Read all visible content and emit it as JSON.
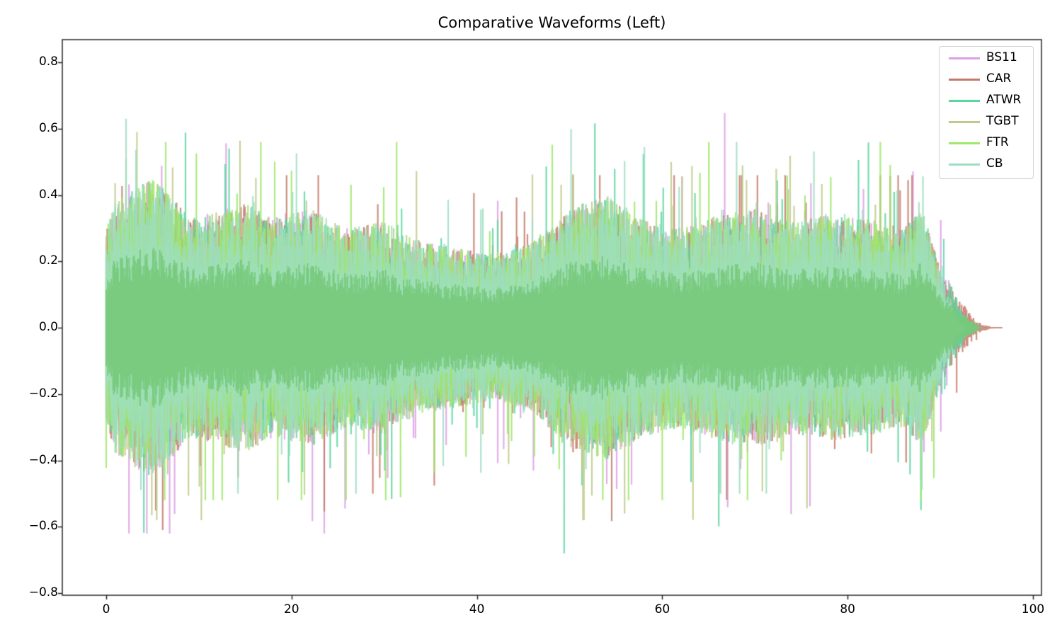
{
  "chart_data": {
    "type": "line",
    "title": "Comparative Waveforms (Left)",
    "xlabel": "",
    "ylabel": "",
    "xlim": [
      -4.8,
      101.5
    ],
    "ylim": [
      -0.81,
      0.87
    ],
    "grid": false,
    "legend_position": "upper right",
    "x_ticks": [
      0,
      20,
      40,
      60,
      80,
      100
    ],
    "x_tick_labels": [
      "0",
      "20",
      "40",
      "60",
      "80",
      "100"
    ],
    "y_ticks": [
      0.8,
      0.6,
      0.4,
      0.2,
      0.0,
      -0.2,
      -0.4,
      -0.6,
      -0.8
    ],
    "y_tick_labels": [
      "0.8",
      "0.6",
      "0.4",
      "0.2",
      "0.0",
      "−0.2",
      "−0.4",
      "−0.6",
      "−0.8"
    ],
    "series": [
      {
        "name": "BS11",
        "color": "#dda0e6",
        "duration": 93.5,
        "peak_max": 0.68,
        "peak_min": -0.62
      },
      {
        "name": "CAR",
        "color": "#c47a6a",
        "duration": 96.7,
        "peak_max": 0.46,
        "peak_min": -0.61
      },
      {
        "name": "ATWR",
        "color": "#5cd6a0",
        "duration": 94.5,
        "peak_max": 0.79,
        "peak_min": -0.73
      },
      {
        "name": "TGBT",
        "color": "#bccb8a",
        "duration": 92.5,
        "peak_max": 0.59,
        "peak_min": -0.58
      },
      {
        "name": "FTR",
        "color": "#9ee86a",
        "duration": 92.0,
        "peak_max": 0.56,
        "peak_min": -0.52
      },
      {
        "name": "CB",
        "color": "#9edec2",
        "duration": 93.0,
        "peak_max": 0.63,
        "peak_min": -0.5
      }
    ],
    "envelope": {
      "x": [
        0,
        1,
        3,
        5,
        7,
        9,
        12,
        15,
        18,
        22,
        26,
        30,
        34,
        38,
        42,
        46,
        50,
        54,
        58,
        62,
        66,
        70,
        74,
        78,
        82,
        86,
        88,
        90,
        92,
        94,
        96.7
      ],
      "amp": [
        0.3,
        0.38,
        0.42,
        0.45,
        0.4,
        0.33,
        0.35,
        0.38,
        0.33,
        0.36,
        0.3,
        0.32,
        0.26,
        0.24,
        0.22,
        0.26,
        0.36,
        0.4,
        0.33,
        0.3,
        0.34,
        0.36,
        0.32,
        0.34,
        0.33,
        0.3,
        0.36,
        0.18,
        0.09,
        0.02,
        0.0
      ]
    }
  },
  "legend": {
    "items": [
      {
        "label": "BS11",
        "color": "#dda0e6"
      },
      {
        "label": "CAR",
        "color": "#c47a6a"
      },
      {
        "label": "ATWR",
        "color": "#5cd6a0"
      },
      {
        "label": "TGBT",
        "color": "#bccb8a"
      },
      {
        "label": "FTR",
        "color": "#9ee86a"
      },
      {
        "label": "CB",
        "color": "#9edec2"
      }
    ]
  },
  "axes": {
    "fill_color": "#76c97a",
    "spine_color": "#262626"
  }
}
